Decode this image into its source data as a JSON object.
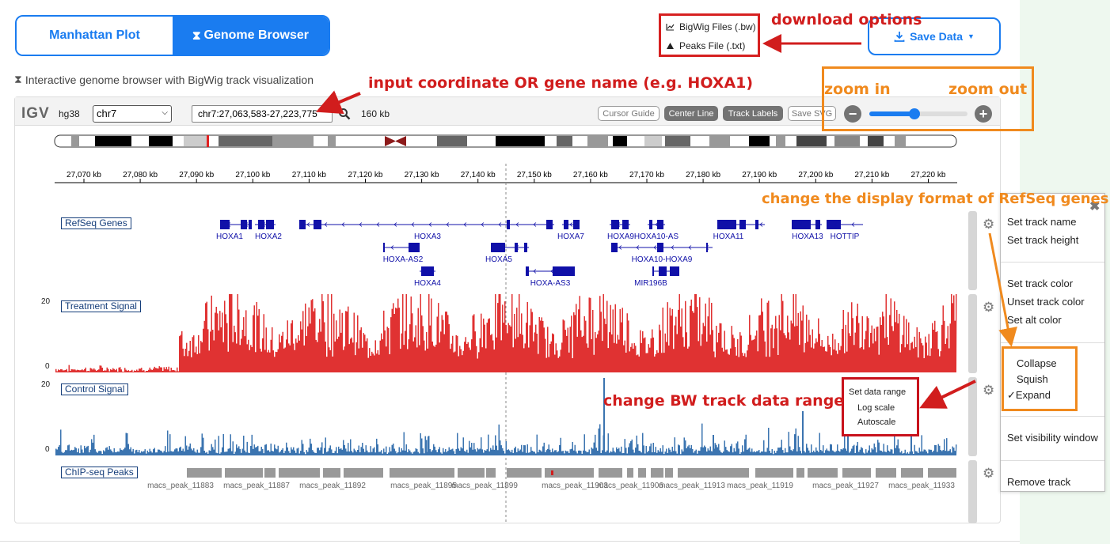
{
  "tabs": [
    {
      "label": "Manhattan Plot",
      "active": false
    },
    {
      "label": "Genome Browser",
      "active": true,
      "icon": "hourglass-icon"
    }
  ],
  "subtitle": "Interactive genome browser with BigWig track visualization",
  "save_data": {
    "label": "Save Data",
    "icon": "download-icon"
  },
  "download_menu": [
    {
      "label": "BigWig Files (.bw)",
      "icon": "line-chart-icon"
    },
    {
      "label": "Peaks File (.txt)",
      "icon": "triangle-icon"
    }
  ],
  "igv": {
    "logo": "IGV",
    "genome": "hg38",
    "chromosome": "chr7",
    "locus": "chr7:27,063,583-27,223,775",
    "window_size": "160 kb",
    "buttons": [
      "Cursor Guide",
      "Center Line",
      "Track Labels",
      "Save SVG"
    ],
    "buttons_on": [
      false,
      true,
      true,
      false
    ],
    "zoom_level": 0.47
  },
  "ruler_labels": [
    "27,070 kb",
    "27,080 kb",
    "27,090 kb",
    "27,100 kb",
    "27,110 kb",
    "27,120 kb",
    "27,130 kb",
    "27,140 kb",
    "27,150 kb",
    "27,160 kb",
    "27,170 kb",
    "27,180 kb",
    "27,190 kb",
    "27,200 kb",
    "27,210 kb",
    "27,220 kb"
  ],
  "tracks": {
    "refseq": {
      "name": "RefSeq Genes"
    },
    "treatment": {
      "name": "Treatment Signal",
      "max": "20",
      "min": "0",
      "color": "#e03232"
    },
    "control": {
      "name": "Control Signal",
      "max": "20",
      "min": "0",
      "color": "#3b74b0"
    },
    "peaks": {
      "name": "ChIP-seq Peaks"
    }
  },
  "genes": [
    "HOXA1",
    "HOXA2",
    "HOXA3",
    "HOXA7",
    "HOXA9",
    "HOXA10-AS",
    "HOXA11",
    "HOXA13",
    "HOTTIP",
    "HOXA-AS2",
    "HOXA5",
    "HOXA10-HOXA9",
    "HOXA4",
    "HOXA-AS3",
    "MIR196B"
  ],
  "peak_labels": [
    "macs_peak_11883",
    "macs_peak_11887",
    "macs_peak_11892",
    "macs_peak_11895",
    "macs_peak_11899",
    "macs_peak_11903",
    "macs_peak_11906",
    "macs_peak_11913",
    "macs_peak_11919",
    "macs_peak_11927",
    "macs_peak_11933"
  ],
  "track_menu": {
    "items": [
      "Set track name",
      "Set track height",
      "Set track color",
      "Unset track color",
      "Set alt color",
      "Collapse",
      "Squish",
      "Expand",
      "Set visibility window",
      "Remove track"
    ],
    "checked": "Expand",
    "close_icon": "close-icon"
  },
  "data_range_menu": [
    "Set data range",
    "Log scale",
    "Autoscale"
  ],
  "annotations": {
    "download": "download options",
    "input": "input coordinate OR gene name (e.g. HOXA1)",
    "zoom_in": "zoom in",
    "zoom_out": "zoom out",
    "refseq_format": "change the display format of RefSeq genes",
    "bw_range": "change BW track data range"
  },
  "colors": {
    "accent": "#1a7cf0",
    "annotation_red": "#d11d1d",
    "annotation_orange": "#f08a1e",
    "gene_blue": "#1010a8"
  }
}
